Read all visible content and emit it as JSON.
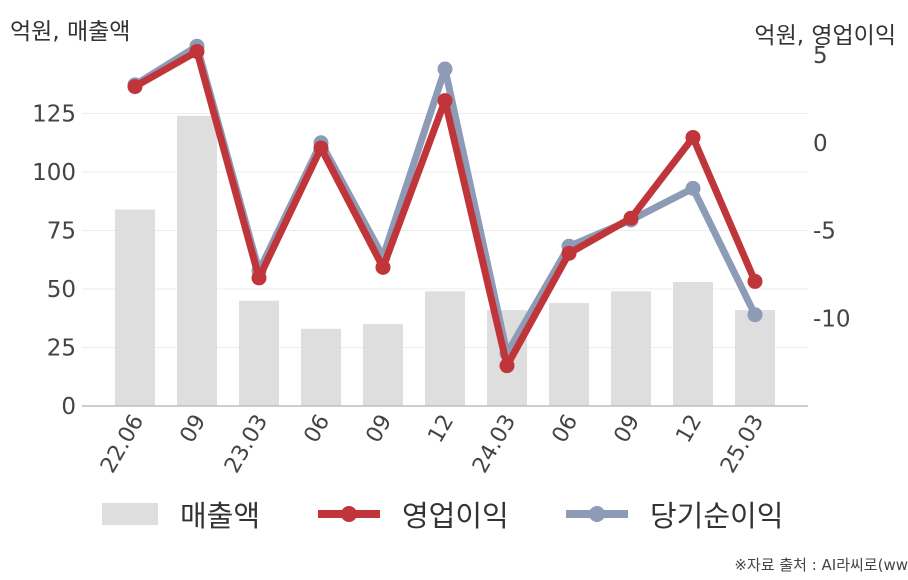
{
  "chart_data": {
    "type": "bar+line",
    "categories": [
      "22.06",
      "09",
      "23.03",
      "06",
      "09",
      "12",
      "24.03",
      "06",
      "09",
      "12",
      "25.03"
    ],
    "left_axis": {
      "label": "억원, 매출액",
      "ylim": [
        0,
        150
      ],
      "ticks": [
        0,
        25,
        50,
        75,
        100,
        125
      ]
    },
    "right_axis": {
      "label": "억원, 영업이익",
      "ylim": [
        -15,
        5
      ],
      "ticks": [
        5,
        0,
        -5,
        -10
      ]
    },
    "series": [
      {
        "name": "매출액",
        "type": "bar",
        "axis": "left",
        "color": "#dedede",
        "values": [
          84,
          124,
          45,
          33,
          35,
          49,
          41,
          44,
          49,
          53,
          41
        ]
      },
      {
        "name": "당기순이익",
        "type": "line",
        "axis": "right",
        "color": "#8d9bb6",
        "values": [
          3.3,
          5.5,
          -7.3,
          0.0,
          -6.5,
          4.2,
          -12.0,
          -5.9,
          -4.4,
          -2.6,
          -9.8
        ]
      },
      {
        "name": "영업이익",
        "type": "line",
        "axis": "right",
        "color": "#c0353a",
        "values": [
          3.2,
          5.2,
          -7.7,
          -0.3,
          -7.1,
          2.4,
          -12.7,
          -6.3,
          -4.3,
          0.3,
          -7.9
        ]
      }
    ],
    "legend_position": "bottom",
    "grid": true
  },
  "legend": [
    {
      "label": "매출액",
      "kind": "bar",
      "color": "#dedede"
    },
    {
      "label": "영업이익",
      "kind": "line",
      "color": "#c0353a"
    },
    {
      "label": "당기순이익",
      "kind": "line",
      "color": "#8d9bb6"
    }
  ],
  "source": "※자료 출처 : AI라씨로(ww"
}
